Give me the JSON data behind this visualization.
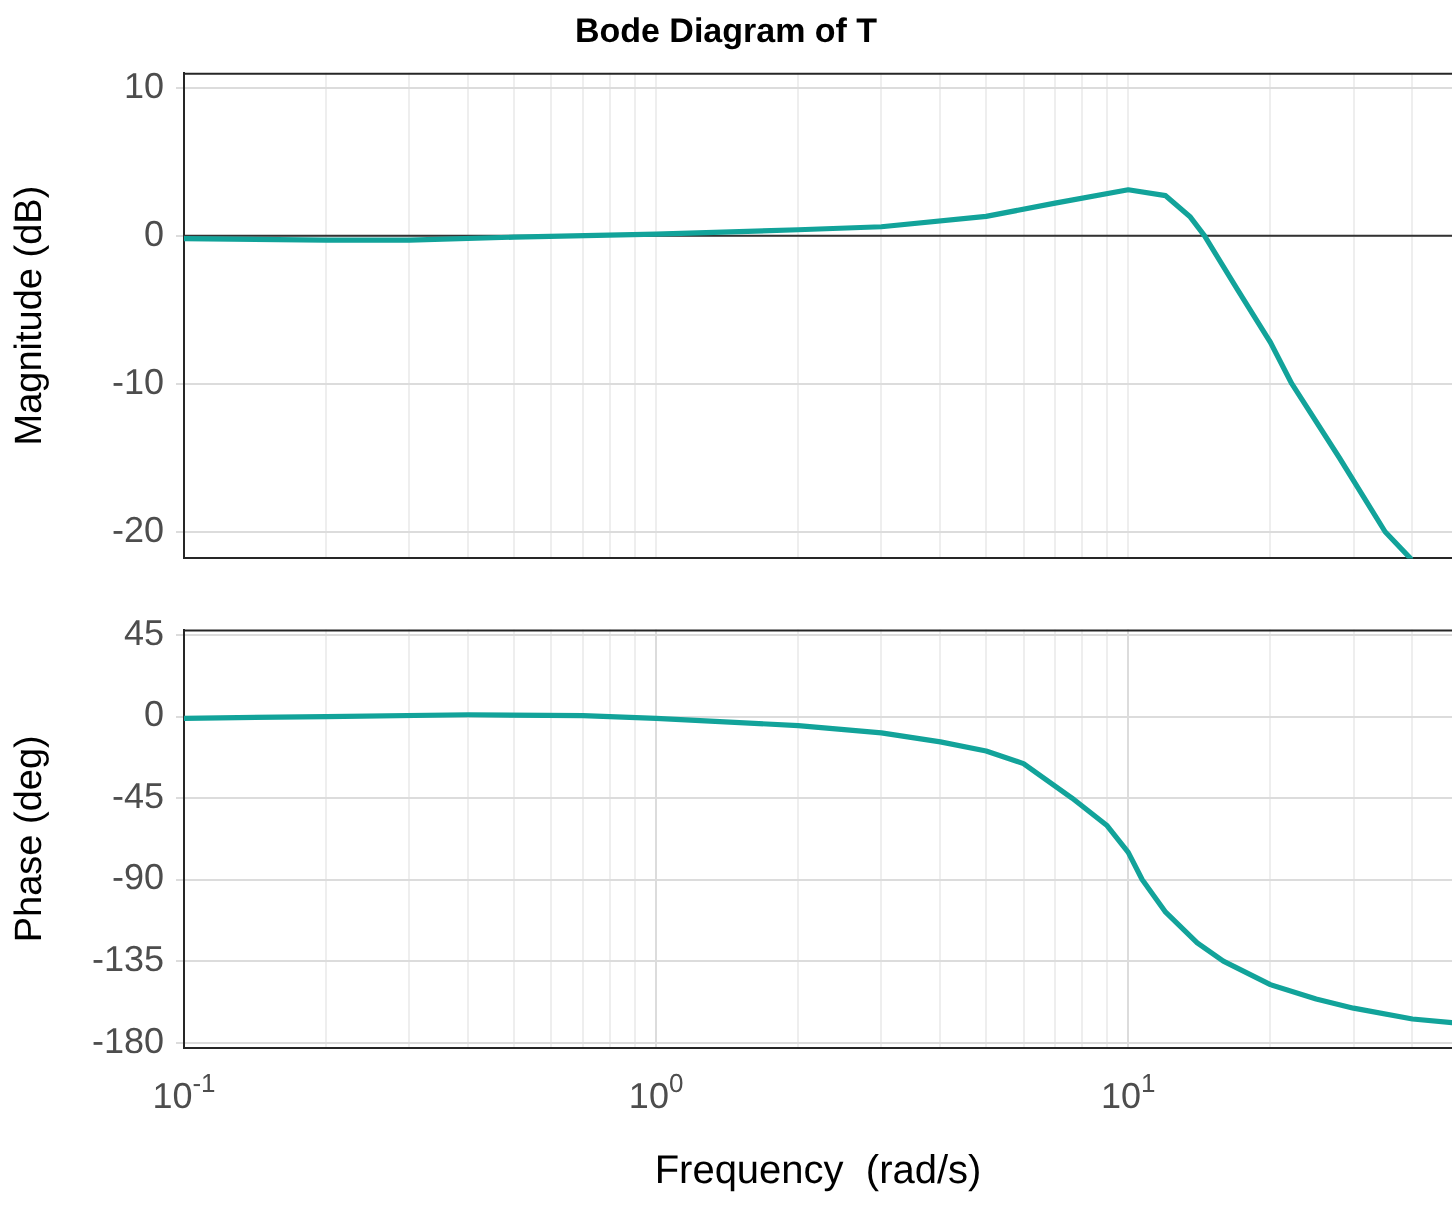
{
  "chart_data": [
    {
      "type": "line",
      "title": "Bode Diagram of T",
      "ylabel": "Magnitude (dB)",
      "log": "x",
      "grid": true,
      "tick_labels": "y",
      "marker": "none",
      "line_style": "solid",
      "xlim": [
        0.1,
        48.5
      ],
      "xticks": [
        {
          "value": 0.1,
          "label": null
        },
        {
          "value": 0.2,
          "label": null
        },
        {
          "value": 0.3,
          "label": null
        },
        {
          "value": 0.4,
          "label": null
        },
        {
          "value": 0.5,
          "label": null
        },
        {
          "value": 0.6,
          "label": null
        },
        {
          "value": 0.7,
          "label": null
        },
        {
          "value": 0.8,
          "label": null
        },
        {
          "value": 0.9,
          "label": null
        },
        {
          "value": 1,
          "label": null
        },
        {
          "value": 2,
          "label": null
        },
        {
          "value": 3,
          "label": null
        },
        {
          "value": 4,
          "label": null
        },
        {
          "value": 5,
          "label": null
        },
        {
          "value": 6,
          "label": null
        },
        {
          "value": 7,
          "label": null
        },
        {
          "value": 8,
          "label": null
        },
        {
          "value": 9,
          "label": null
        },
        {
          "value": 10,
          "label": null
        },
        {
          "value": 20,
          "label": null
        },
        {
          "value": 30,
          "label": null
        },
        {
          "value": 40,
          "label": null
        }
      ],
      "ylim": [
        -21.8,
        11
      ],
      "yticks": [
        -20,
        -10,
        0,
        10
      ],
      "ref_lines": [
        {
          "axis": "y",
          "value": 0,
          "color": "#333333"
        }
      ],
      "x": [
        0.1,
        0.2,
        0.3,
        0.5,
        1,
        2,
        3,
        5,
        7,
        10,
        12,
        13.5,
        14.5,
        17,
        20,
        22.2,
        28,
        35,
        39.6
      ],
      "series": [
        {
          "color": "#12a39a",
          "values": [
            -0.2,
            -0.3,
            -0.3,
            -0.1,
            0.1,
            0.4,
            0.6,
            1.3,
            2.2,
            3.1,
            2.7,
            1.3,
            0,
            -3.6,
            -7.2,
            -10,
            -15,
            -20,
            -21.8
          ]
        }
      ]
    },
    {
      "type": "line",
      "xlabel": "Frequency  (rad/s)",
      "ylabel": "Phase (deg)",
      "log": "x",
      "grid": true,
      "marker": "none",
      "line_style": "solid",
      "xlim": [
        0.1,
        48.5
      ],
      "xticks": [
        {
          "value": 0.1,
          "label": "10$^{-1}$"
        },
        {
          "value": 0.2,
          "label": null
        },
        {
          "value": 0.3,
          "label": null
        },
        {
          "value": 0.4,
          "label": null
        },
        {
          "value": 0.5,
          "label": null
        },
        {
          "value": 0.6,
          "label": null
        },
        {
          "value": 0.7,
          "label": null
        },
        {
          "value": 0.8,
          "label": null
        },
        {
          "value": 0.9,
          "label": null
        },
        {
          "value": 1,
          "label": "10$^{0}$"
        },
        {
          "value": 2,
          "label": null
        },
        {
          "value": 3,
          "label": null
        },
        {
          "value": 4,
          "label": null
        },
        {
          "value": 5,
          "label": null
        },
        {
          "value": 6,
          "label": null
        },
        {
          "value": 7,
          "label": null
        },
        {
          "value": 8,
          "label": null
        },
        {
          "value": 9,
          "label": null
        },
        {
          "value": 10,
          "label": "10$^{1}$"
        },
        {
          "value": 20,
          "label": null
        },
        {
          "value": 30,
          "label": null
        },
        {
          "value": 40,
          "label": null
        }
      ],
      "ylim": [
        -183,
        48
      ],
      "yticks": [
        -180,
        -135,
        -90,
        -45,
        0,
        45
      ],
      "x": [
        0.1,
        0.2,
        0.4,
        0.7,
        1,
        2,
        3,
        4,
        5,
        6,
        7.6,
        9,
        10,
        10.7,
        12,
        14,
        15.9,
        20,
        25,
        30,
        40,
        48.5
      ],
      "series": [
        {
          "color": "#12a39a",
          "values": [
            -1,
            0,
            1,
            0.5,
            -1,
            -5,
            -9,
            -14,
            -19,
            -26,
            -45,
            -60,
            -75,
            -90,
            -108,
            -125,
            -135,
            -148,
            -156,
            -161,
            -167,
            -169
          ]
        }
      ]
    }
  ]
}
